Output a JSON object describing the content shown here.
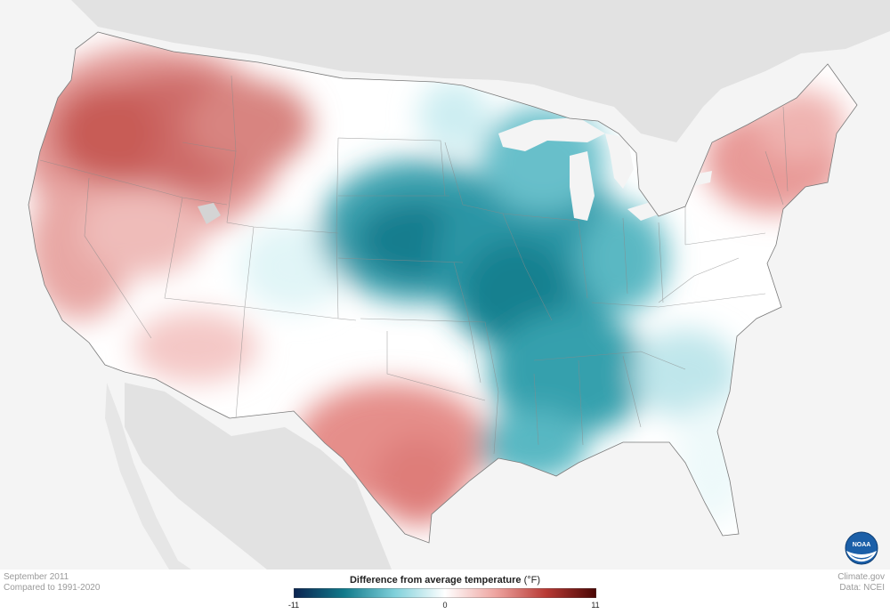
{
  "map": {
    "region": "Contiguous United States",
    "variable": "Difference from average temperature",
    "colors": {
      "cold_extreme": "#0b2350",
      "cold_strong": "#117a8b",
      "cold_mid": "#3fa9b5",
      "cold_light": "#bfeaf0",
      "neutral": "#ffffff",
      "warm_light": "#f6cfcd",
      "warm_mid": "#e58e8a",
      "warm_strong": "#c6504b",
      "warm_extreme": "#4a0604",
      "land_background": "#e3e3e3",
      "ocean_background": "#f4f4f4"
    },
    "anomaly_regions": [
      {
        "area": "Pacific Northwest / Northern Rockies",
        "tone": "warm_strong"
      },
      {
        "area": "California / Great Basin",
        "tone": "warm_mid"
      },
      {
        "area": "Texas",
        "tone": "warm_mid"
      },
      {
        "area": "Northeast / New England",
        "tone": "warm_mid"
      },
      {
        "area": "Central Plains / Midwest",
        "tone": "cold_strong"
      },
      {
        "area": "Lower Mississippi Valley / Deep South",
        "tone": "cold_strong"
      },
      {
        "area": "Southeast coast / Florida",
        "tone": "cold_light"
      }
    ]
  },
  "notes": {
    "date": "September 2011",
    "baseline": "Compared to 1991-2020",
    "source_site": "Climate.gov",
    "source_data": "Data: NCEI"
  },
  "legend": {
    "title": "Difference from average temperature",
    "unit": "(°F)",
    "min_label": "-11",
    "mid_label": "0",
    "max_label": "11",
    "min": -11,
    "max": 11,
    "stops": [
      "#0b2350",
      "#117a8b",
      "#7fd0da",
      "#ffffff",
      "#eea4a0",
      "#b83a35",
      "#4a0604"
    ]
  },
  "logo": {
    "text": "NOAA",
    "icon": "noaa-logo-icon"
  }
}
